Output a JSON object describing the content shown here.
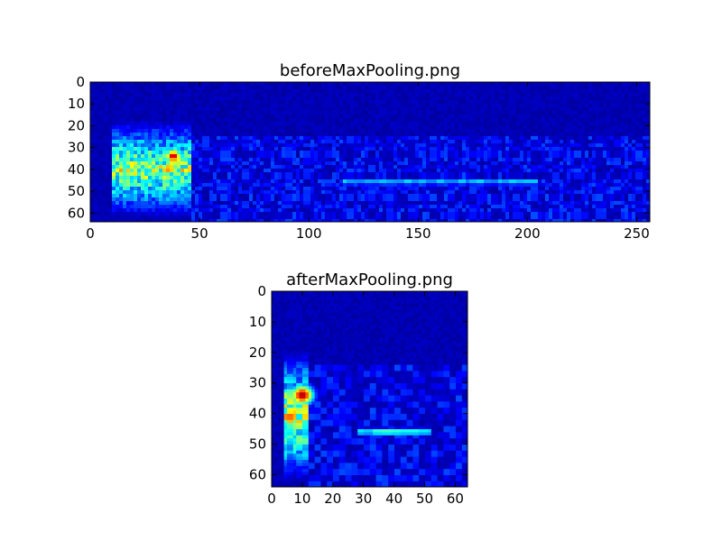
{
  "chart_data": [
    {
      "type": "heatmap",
      "title": "beforeMaxPooling.png",
      "xlabel": "",
      "ylabel": "",
      "xlim": [
        0,
        256
      ],
      "ylim": [
        64,
        0
      ],
      "x_ticks": [
        0,
        50,
        100,
        150,
        200,
        250
      ],
      "y_ticks": [
        0,
        10,
        20,
        30,
        40,
        50,
        60
      ],
      "colormap": "jet",
      "grid": false,
      "features": [
        {
          "name": "onset-burst",
          "x_range": [
            10,
            46
          ],
          "y_range": [
            18,
            62
          ],
          "intensity": 0.75
        },
        {
          "name": "peak",
          "x": 38,
          "y": 34,
          "intensity": 0.95
        },
        {
          "name": "horizontal-band",
          "x_range": [
            115,
            205
          ],
          "y": 46,
          "intensity": 0.45
        },
        {
          "name": "background-texture",
          "x_range": [
            46,
            256
          ],
          "y_range": [
            24,
            64
          ],
          "intensity": 0.2
        }
      ]
    },
    {
      "type": "heatmap",
      "title": "afterMaxPooling.png",
      "xlabel": "",
      "ylabel": "",
      "xlim": [
        0,
        64
      ],
      "ylim": [
        64,
        0
      ],
      "x_ticks": [
        0,
        10,
        20,
        30,
        40,
        50,
        60
      ],
      "y_ticks": [
        0,
        10,
        20,
        30,
        40,
        50,
        60
      ],
      "colormap": "jet",
      "grid": false,
      "features": [
        {
          "name": "onset-burst",
          "x_range": [
            4,
            12
          ],
          "y_range": [
            20,
            62
          ],
          "intensity": 0.8
        },
        {
          "name": "peak",
          "x": 10,
          "y": 34,
          "intensity": 0.97
        },
        {
          "name": "horizontal-band",
          "x_range": [
            28,
            52
          ],
          "y": 46,
          "intensity": 0.5
        },
        {
          "name": "background-texture",
          "x_range": [
            12,
            64
          ],
          "y_range": [
            24,
            64
          ],
          "intensity": 0.2
        }
      ]
    }
  ]
}
